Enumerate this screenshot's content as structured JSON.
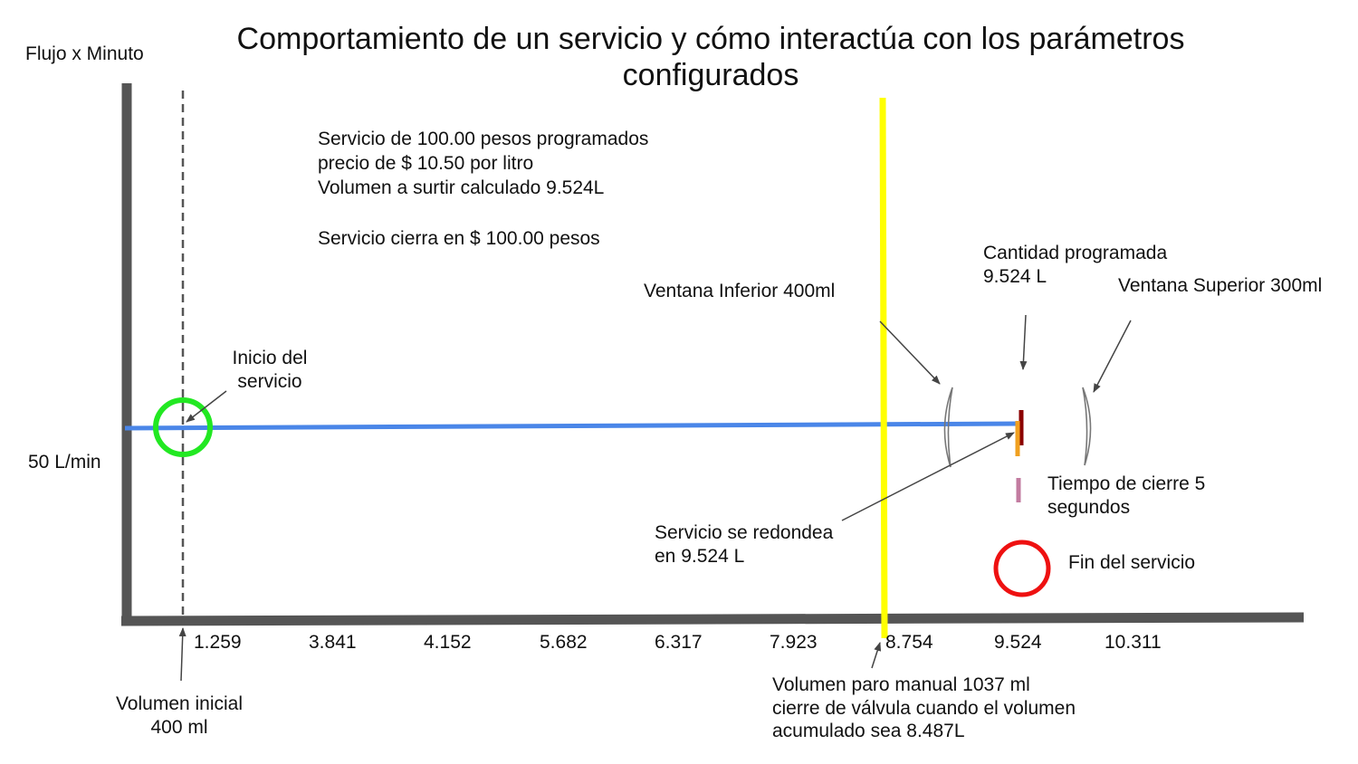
{
  "title": "Comportamiento de un servicio y cómo interactúa con los parámetros configurados",
  "axes": {
    "y_label": "Flujo x Minuto",
    "y_value_label": "50 L/min",
    "x_ticks": [
      "1.259",
      "3.841",
      "4.152",
      "5.682",
      "6.317",
      "7.923",
      "8.754",
      "9.524",
      "10.311"
    ]
  },
  "info": {
    "line1": "Servicio de 100.00 pesos programados",
    "line2": "precio de $ 10.50 por litro",
    "line3": "Volumen a surtir calculado 9.524L",
    "line4": "Servicio cierra en $ 100.00 pesos"
  },
  "annotations": {
    "inicio_line1": "Inicio del",
    "inicio_line2": "servicio",
    "ventana_inferior": "Ventana Inferior 400ml",
    "cantidad_line1": "Cantidad programada",
    "cantidad_line2": "9.524 L",
    "ventana_superior": "Ventana Superior 300ml",
    "tiempo_line1": "Tiempo de cierre 5",
    "tiempo_line2": "segundos",
    "redondea_line1": "Servicio se redondea",
    "redondea_line2": "en 9.524 L",
    "fin": "Fin del servicio",
    "vol_inicial_line1": "Volumen inicial",
    "vol_inicial_line2": "400 ml",
    "paro_line1": "Volumen paro manual 1037 ml",
    "paro_line2": "cierre de válvula cuando el volumen",
    "paro_line3": "acumulado sea 8.487L"
  },
  "colors": {
    "axis": "#555555",
    "flow_line": "#4a86e8",
    "start_circle": "#22e822",
    "manual_stop_line": "#ffff00",
    "end_circle": "#ee1111",
    "programmed_mark": "#8b0000",
    "rounded_mark": "#f0a020",
    "close_time_mark": "#c27ba0"
  }
}
